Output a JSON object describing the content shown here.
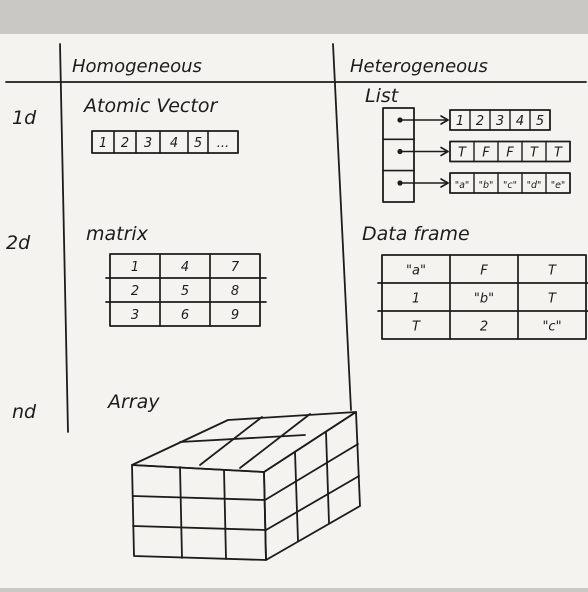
{
  "headers": {
    "homogeneous": "Homogeneous",
    "heterogeneous": "Heterogeneous"
  },
  "rows": {
    "r1": "1d",
    "r2": "2d",
    "r3": "nd"
  },
  "atomic_vector": {
    "title": "Atomic Vector",
    "cells": [
      "1",
      "2",
      "3",
      "4",
      "5",
      "..."
    ]
  },
  "list": {
    "title": "List",
    "vectors": [
      [
        "1",
        "2",
        "3",
        "4",
        "5"
      ],
      [
        "T",
        "F",
        "F",
        "T",
        "T"
      ],
      [
        "\"a\"",
        "\"b\"",
        "\"c\"",
        "\"d\"",
        "\"e\""
      ]
    ]
  },
  "matrix": {
    "title": "matrix",
    "rows": [
      [
        "1",
        "4",
        "7"
      ],
      [
        "2",
        "5",
        "8"
      ],
      [
        "3",
        "6",
        "9"
      ]
    ]
  },
  "data_frame": {
    "title": "Data frame",
    "rows": [
      [
        "\"a\"",
        "F",
        "T"
      ],
      [
        "1",
        "\"b\"",
        "T"
      ],
      [
        "T",
        "2",
        "\"c\""
      ]
    ]
  },
  "array": {
    "title": "Array"
  }
}
